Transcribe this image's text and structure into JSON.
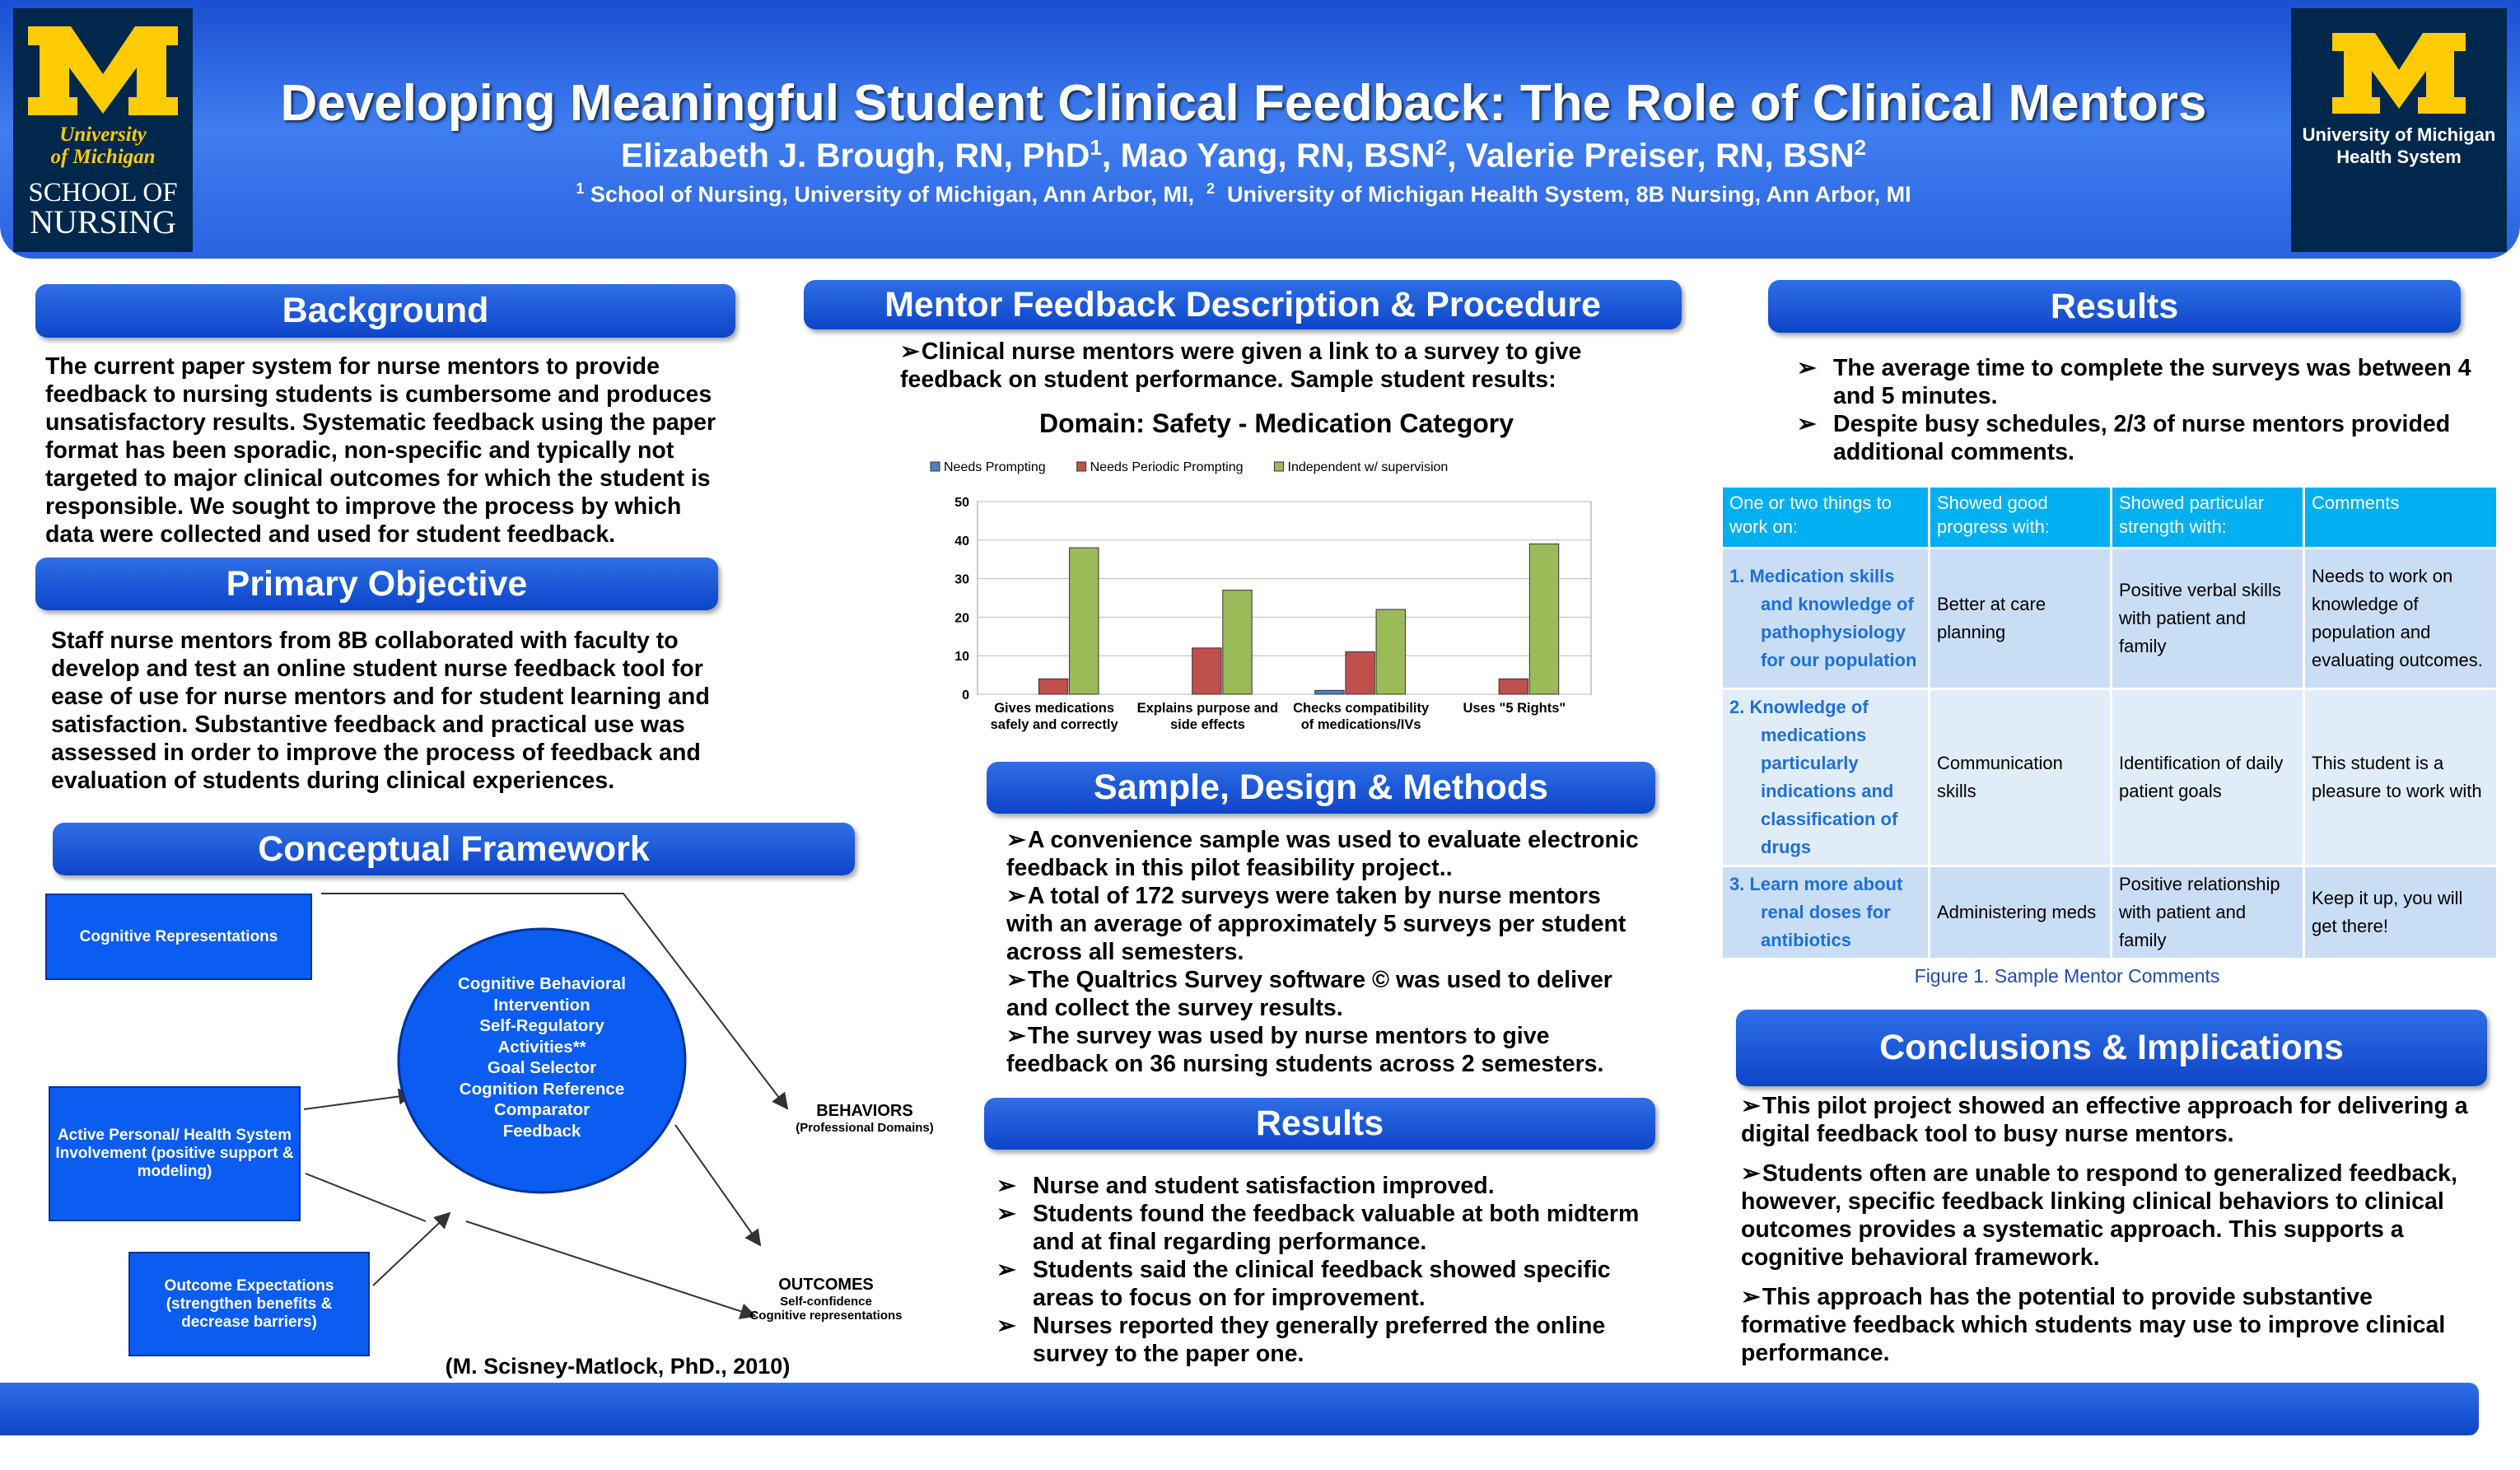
{
  "header": {
    "title": "Developing Meaningful Student Clinical Feedback: The Role of Clinical Mentors",
    "authors": [
      {
        "name": "Elizabeth J. Brough, RN, PhD",
        "sup": "1"
      },
      {
        "name": ", Mao Yang, RN, BSN",
        "sup": "2"
      },
      {
        "name": ", Valerie Preiser, RN, BSN",
        "sup": "2"
      }
    ],
    "affiliations": [
      {
        "sup": "1",
        "text": " School of Nursing, University of Michigan, Ann Arbor, MI,  "
      },
      {
        "sup": "2",
        "text": "  University of Michigan Health System, 8B Nursing, Ann Arbor, MI"
      }
    ],
    "logo_left": {
      "line1": "University",
      "line2": "of Michigan",
      "line3": "SCHOOL OF",
      "line4": "NURSING"
    },
    "logo_right": {
      "line1": "University of Michigan",
      "line2": "Health System"
    }
  },
  "background": {
    "heading": "Background",
    "text": "The current  paper system for nurse mentors to provide feedback to nursing students is cumbersome and produces unsatisfactory results.  Systematic feedback using the paper format has been sporadic, non-specific and typically not targeted to major clinical outcomes for which the student is responsible.  We sought to improve the process by which data were collected and used for student feedback."
  },
  "objective": {
    "heading": "Primary Objective",
    "text": "Staff nurse mentors from 8B collaborated with faculty to develop and test an online student nurse feedback tool for ease of use for nurse mentors and for student learning and satisfaction.  Substantive feedback and practical use was assessed in order to improve the process of feedback and evaluation of students during clinical experiences."
  },
  "framework": {
    "heading": "Conceptual Framework",
    "box1": "Cognitive Representations",
    "box2": "Active Personal/ Health System Involvement (positive support & modeling)",
    "box3": "Outcome Expectations (strengthen benefits & decrease barriers)",
    "ellipse": [
      "Cognitive Behavioral",
      "Intervention",
      "Self-Regulatory",
      "Activities**",
      "Goal Selector",
      "Cognition Reference",
      "Comparator",
      "Feedback"
    ],
    "behaviors": "BEHAVIORS",
    "behaviors_sub": "(Professional Domains)",
    "outcomes": "OUTCOMES",
    "outcomes_sub1": "Self-confidence",
    "outcomes_sub2": "Cognitive representations",
    "citation": "(M. Scisney-Matlock, PhD., 2010)"
  },
  "mentor": {
    "heading": "Mentor Feedback Description & Procedure",
    "text": "Clinical nurse mentors were given a link to a survey to give feedback on student performance.  Sample student results:"
  },
  "chart_data": {
    "type": "bar",
    "title": "Domain: Safety - Medication Category",
    "categories": [
      "Gives medications safely and correctly",
      "Explains purpose and side effects",
      "Checks compatibility of medications/IVs",
      "Uses \"5 Rights\""
    ],
    "series": [
      {
        "name": "Needs Prompting",
        "color": "#4f81bd",
        "values": [
          0,
          0,
          1,
          0
        ]
      },
      {
        "name": "Needs Periodic Prompting",
        "color": "#c0504d",
        "values": [
          4,
          12,
          11,
          4
        ]
      },
      {
        "name": "Independent w/ supervision",
        "color": "#9bbb59",
        "values": [
          38,
          27,
          22,
          39
        ]
      }
    ],
    "ylim": [
      0,
      50
    ],
    "yticks": [
      0,
      10,
      20,
      30,
      40,
      50
    ],
    "grid": true
  },
  "methods": {
    "heading": "Sample,  Design & Methods",
    "items": [
      "A convenience sample was used to evaluate electronic feedback in this pilot feasibility project..",
      "A total of 172 surveys were taken by nurse mentors with an average of approximately 5 surveys per student across all semesters.",
      "The Qualtrics Survey software © was used to deliver and collect the survey results.",
      "The survey was used by nurse mentors to give feedback on 36 nursing students across 2 semesters."
    ]
  },
  "results_mid": {
    "heading": "Results",
    "items": [
      "Nurse and student satisfaction improved.",
      "Students found the feedback valuable at both midterm and at final regarding performance.",
      "Students said the clinical feedback showed specific areas to focus on for improvement.",
      "Nurses reported they generally preferred the online survey to the paper one."
    ]
  },
  "results_right": {
    "heading": "Results",
    "items": [
      "The average time to complete the surveys was between 4 and 5 minutes.",
      "Despite busy schedules, 2/3 of nurse mentors provided additional comments."
    ]
  },
  "table": {
    "header": [
      "One or two things to work on:",
      "Showed good progress with:",
      "Showed particular strength with:",
      "Comments"
    ],
    "rows": [
      [
        "1.  Medication skills and knowledge of pathophysiology for our population",
        "Better at care planning",
        "Positive verbal skills with patient and family",
        "Needs to work on knowledge of population and evaluating outcomes."
      ],
      [
        "2.  Knowledge of medications particularly indications and classification of drugs",
        "Communication skills",
        "Identification of daily patient goals",
        "This student is a pleasure to work with"
      ],
      [
        "3.  Learn more about renal doses for antibiotics",
        "Administering meds",
        "Positive relationship with patient and family",
        "Keep it up, you will get there!"
      ]
    ],
    "caption": "Figure 1. Sample Mentor Comments"
  },
  "conclusions": {
    "heading": "Conclusions & Implications",
    "items": [
      "This pilot project  showed an effective approach for delivering a digital feedback tool to busy nurse mentors.",
      "Students often are unable to respond to generalized feedback, however, specific feedback linking clinical behaviors to clinical outcomes provides a systematic approach.  This supports a cognitive behavioral framework.",
      "This approach has the potential to provide substantive formative feedback  which students may use to improve clinical performance."
    ]
  }
}
